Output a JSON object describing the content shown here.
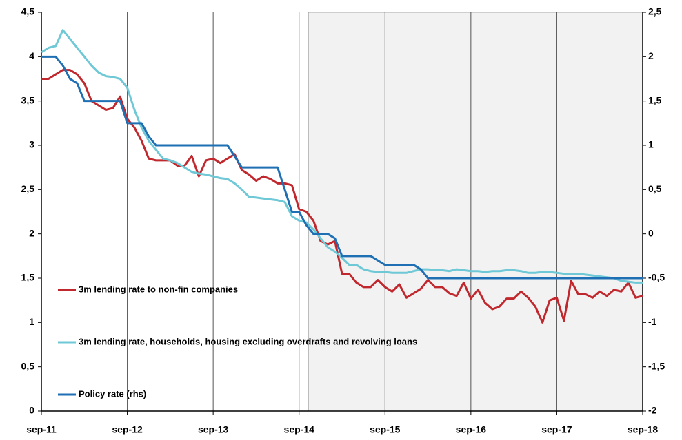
{
  "chart_data": {
    "type": "line",
    "categories": [
      "sep-11",
      null,
      null,
      null,
      null,
      null,
      null,
      null,
      null,
      null,
      null,
      null,
      "sep-12",
      null,
      null,
      null,
      null,
      null,
      null,
      null,
      null,
      null,
      null,
      null,
      "sep-13",
      null,
      null,
      null,
      null,
      null,
      null,
      null,
      null,
      null,
      null,
      null,
      "sep-14",
      null,
      null,
      null,
      null,
      null,
      null,
      null,
      null,
      null,
      null,
      null,
      "sep-15",
      null,
      null,
      null,
      null,
      null,
      null,
      null,
      null,
      null,
      null,
      null,
      "sep-16",
      null,
      null,
      null,
      null,
      null,
      null,
      null,
      null,
      null,
      null,
      null,
      "sep-17",
      null,
      null,
      null,
      null,
      null,
      null,
      null,
      null,
      null,
      null,
      null,
      "sep-18"
    ],
    "series": [
      {
        "name": "3m lending rate to non-fin companies",
        "color": "#c0282e",
        "values": [
          3.75,
          3.75,
          3.8,
          3.85,
          3.85,
          3.8,
          3.7,
          3.5,
          3.45,
          3.4,
          3.42,
          3.55,
          3.3,
          3.2,
          3.05,
          2.85,
          2.83,
          2.83,
          2.83,
          2.77,
          2.77,
          2.88,
          2.65,
          2.83,
          2.85,
          2.8,
          2.85,
          2.9,
          2.72,
          2.67,
          2.6,
          2.65,
          2.62,
          2.57,
          2.57,
          2.55,
          2.28,
          2.25,
          2.15,
          1.92,
          1.88,
          1.92,
          1.55,
          1.55,
          1.45,
          1.4,
          1.4,
          1.48,
          1.4,
          1.35,
          1.43,
          1.28,
          1.33,
          1.38,
          1.48,
          1.4,
          1.4,
          1.33,
          1.3,
          1.45,
          1.27,
          1.37,
          1.22,
          1.15,
          1.18,
          1.27,
          1.27,
          1.35,
          1.28,
          1.18,
          1.0,
          1.25,
          1.28,
          1.02,
          1.47,
          1.32,
          1.32,
          1.28,
          1.35,
          1.3,
          1.37,
          1.35,
          1.45,
          1.28,
          1.3
        ]
      },
      {
        "name": "3m lending rate, households, housing excluding overdrafts and revolving loans",
        "color": "#6ec8d6",
        "values": [
          4.05,
          4.1,
          4.12,
          4.3,
          4.2,
          4.1,
          4.0,
          3.9,
          3.82,
          3.78,
          3.77,
          3.75,
          3.65,
          3.4,
          3.2,
          3.05,
          2.95,
          2.85,
          2.83,
          2.8,
          2.75,
          2.7,
          2.68,
          2.67,
          2.65,
          2.63,
          2.62,
          2.57,
          2.5,
          2.42,
          2.41,
          2.4,
          2.39,
          2.38,
          2.36,
          2.2,
          2.15,
          2.13,
          2.05,
          1.95,
          1.85,
          1.8,
          1.73,
          1.65,
          1.65,
          1.6,
          1.58,
          1.57,
          1.57,
          1.56,
          1.56,
          1.56,
          1.58,
          1.6,
          1.6,
          1.59,
          1.59,
          1.58,
          1.6,
          1.59,
          1.58,
          1.58,
          1.57,
          1.58,
          1.58,
          1.59,
          1.59,
          1.58,
          1.56,
          1.56,
          1.57,
          1.57,
          1.56,
          1.55,
          1.55,
          1.55,
          1.54,
          1.53,
          1.52,
          1.51,
          1.5,
          1.47,
          1.46,
          1.45,
          1.45
        ]
      },
      {
        "name": "Policy rate (rhs)",
        "color": "#1f6fb4",
        "axis": "y2",
        "values": [
          2,
          2,
          2,
          1.9,
          1.75,
          1.7,
          1.5,
          1.5,
          1.5,
          1.5,
          1.5,
          1.5,
          1.25,
          1.25,
          1.25,
          1.1,
          1,
          1,
          1,
          1,
          1,
          1,
          1,
          1,
          1,
          1,
          1,
          0.875,
          0.75,
          0.75,
          0.75,
          0.75,
          0.75,
          0.75,
          0.5,
          0.25,
          0.25,
          0.1,
          0,
          0,
          0,
          -0.05,
          -0.25,
          -0.25,
          -0.25,
          -0.25,
          -0.25,
          -0.3,
          -0.35,
          -0.35,
          -0.35,
          -0.35,
          -0.35,
          -0.4,
          -0.5,
          -0.5,
          -0.5,
          -0.5,
          -0.5,
          -0.5,
          -0.5,
          -0.5,
          -0.5,
          -0.5,
          -0.5,
          -0.5,
          -0.5,
          -0.5,
          -0.5,
          -0.5,
          -0.5,
          -0.5,
          -0.5,
          -0.5,
          -0.5,
          -0.5,
          -0.5,
          -0.5,
          -0.5,
          -0.5,
          -0.5,
          -0.5,
          -0.5,
          -0.5,
          -0.5
        ]
      }
    ],
    "ylim": [
      0,
      4.5
    ],
    "yticks": [
      0,
      {
        "value": 0.5,
        "label": "0,5"
      },
      1,
      {
        "value": 1.5,
        "label": "1,5"
      },
      2,
      {
        "value": 2.5,
        "label": "2,5"
      },
      3,
      {
        "value": 3.5,
        "label": "3,5"
      },
      4,
      {
        "value": 4.5,
        "label": "4,5"
      }
    ],
    "y2lim": [
      -2,
      2.5
    ],
    "y2ticks": [
      -2,
      {
        "value": -1.5,
        "label": "-1,5"
      },
      -1,
      {
        "value": -0.5,
        "label": "-0,5"
      },
      0,
      {
        "value": 0.5,
        "label": "0,5"
      },
      1,
      {
        "value": 1.5,
        "label": "1,5"
      },
      2,
      {
        "value": 2.5,
        "label": "2,5"
      }
    ],
    "shaded_from_index": 37.3,
    "grid": "x",
    "legend": "left"
  }
}
